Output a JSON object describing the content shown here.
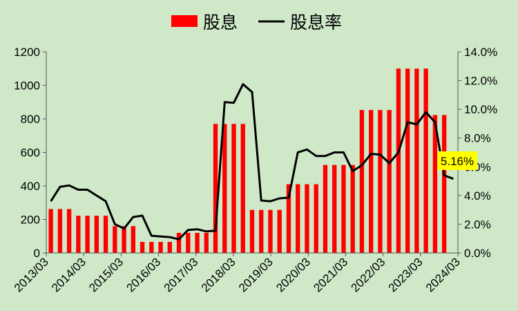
{
  "chart_data": {
    "type": "bar",
    "legend": {
      "placement": "top-center",
      "entries": [
        {
          "label": "股息",
          "kind": "bar",
          "color": "#ff0000"
        },
        {
          "label": "股息率",
          "kind": "line",
          "color": "#000000"
        }
      ]
    },
    "colors": {
      "background": "#cfe8c8",
      "bar": "#ff0000",
      "line": "#000000",
      "callout": "#ffff00"
    },
    "x_tick_labels": [
      "2013/03",
      "2014/03",
      "2015/03",
      "2016/03",
      "2017/03",
      "2018/03",
      "2019/03",
      "2020/03",
      "2021/03",
      "2022/03",
      "2023/03",
      "2024/03"
    ],
    "left_axis": {
      "min": 0,
      "max": 1200,
      "step": 200,
      "tick_labels": [
        "0",
        "200",
        "400",
        "600",
        "800",
        "1000",
        "1200"
      ]
    },
    "right_axis": {
      "min": 0,
      "max": 14,
      "step": 2,
      "tick_labels": [
        "0.0%",
        "2.0%",
        "4.0%",
        "6.0%",
        "8.0%",
        "10.0%",
        "12.0%",
        "14.0%"
      ]
    },
    "grid": false,
    "series": [
      {
        "name": "股息",
        "type": "bar",
        "axis": "left",
        "values": [
          262,
          262,
          262,
          222,
          222,
          222,
          222,
          160,
          160,
          160,
          66,
          66,
          66,
          66,
          120,
          120,
          120,
          120,
          770,
          770,
          770,
          770,
          257,
          257,
          257,
          257,
          410,
          410,
          410,
          410,
          525,
          525,
          525,
          525,
          853,
          853,
          853,
          853,
          1100,
          1100,
          1100,
          1100,
          823,
          823
        ]
      },
      {
        "name": "股息率",
        "type": "line",
        "axis": "right",
        "values": [
          3.6,
          4.6,
          4.7,
          4.4,
          4.4,
          4.0,
          3.6,
          2.0,
          1.7,
          2.5,
          2.6,
          1.2,
          1.15,
          1.1,
          0.95,
          1.6,
          1.65,
          1.5,
          1.55,
          10.5,
          10.45,
          11.75,
          11.2,
          3.65,
          3.6,
          3.8,
          3.85,
          7.0,
          7.2,
          6.75,
          6.75,
          7.0,
          7.0,
          5.7,
          6.1,
          6.9,
          6.85,
          6.25,
          7.0,
          9.1,
          8.95,
          9.8,
          9.1,
          5.4,
          5.16
        ]
      }
    ],
    "callout": {
      "text": "5.16%"
    }
  }
}
